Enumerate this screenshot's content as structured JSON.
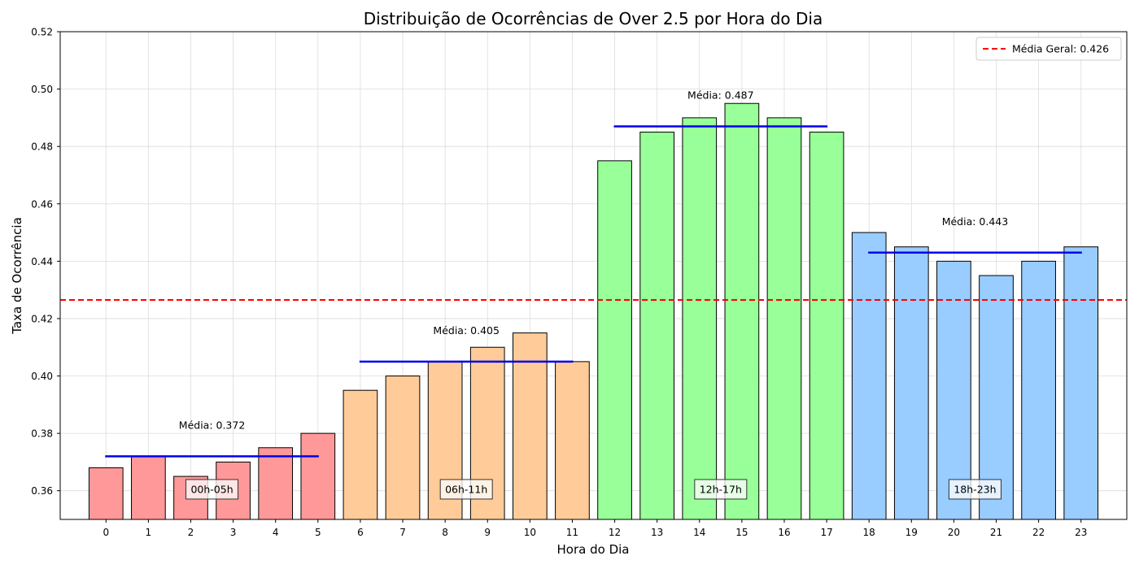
{
  "chart_data": {
    "type": "bar",
    "title": "Distribuição de Ocorrências de Over 2.5 por Hora do Dia",
    "xlabel": "Hora do Dia",
    "ylabel": "Taxa de Ocorrência",
    "ylim": [
      0.35,
      0.52
    ],
    "yticks": [
      "0.36",
      "0.38",
      "0.40",
      "0.42",
      "0.44",
      "0.46",
      "0.48",
      "0.50",
      "0.52"
    ],
    "categories": [
      "0",
      "1",
      "2",
      "3",
      "4",
      "5",
      "6",
      "7",
      "8",
      "9",
      "10",
      "11",
      "12",
      "13",
      "14",
      "15",
      "16",
      "17",
      "18",
      "19",
      "20",
      "21",
      "22",
      "23"
    ],
    "values": [
      0.368,
      0.372,
      0.365,
      0.37,
      0.375,
      0.38,
      0.395,
      0.4,
      0.405,
      0.41,
      0.415,
      0.405,
      0.475,
      0.485,
      0.49,
      0.495,
      0.49,
      0.485,
      0.45,
      0.445,
      0.44,
      0.435,
      0.44,
      0.445
    ],
    "grid": true,
    "legend_position": "top-right",
    "overall_mean": {
      "value": 0.4265,
      "label": "Média Geral: 0.426",
      "color": "#ff0000"
    },
    "periods": [
      {
        "label": "00h-05h",
        "start": 0,
        "end": 5,
        "color": "#ff9999",
        "mean": 0.372,
        "mean_label": "Média: 0.372"
      },
      {
        "label": "06h-11h",
        "start": 6,
        "end": 11,
        "color": "#ffcc99",
        "mean": 0.405,
        "mean_label": "Média: 0.405"
      },
      {
        "label": "12h-17h",
        "start": 12,
        "end": 17,
        "color": "#99ff99",
        "mean": 0.487,
        "mean_label": "Média: 0.487"
      },
      {
        "label": "18h-23h",
        "start": 18,
        "end": 23,
        "color": "#99ccff",
        "mean": 0.443,
        "mean_label": "Média: 0.443"
      }
    ],
    "mean_line_color": "#0000ee"
  }
}
